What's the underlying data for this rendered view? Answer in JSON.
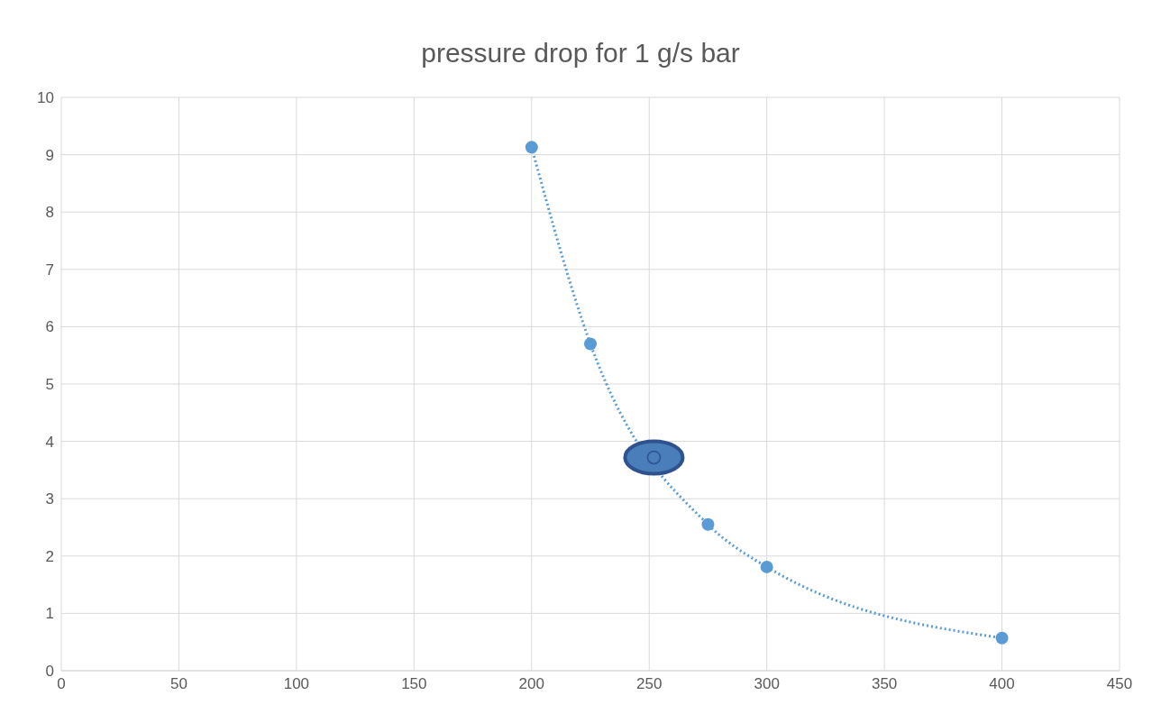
{
  "chart_data": {
    "type": "line",
    "title": "pressure drop for 1 g/s bar",
    "series": [
      {
        "color": "#5b9bd5",
        "marker": "circle",
        "line_style": "dotted",
        "x": [
          200,
          225,
          275,
          300,
          400
        ],
        "values": [
          9.13,
          5.7,
          2.55,
          1.81,
          0.57
        ]
      },
      {
        "type": "scatter",
        "color": "#4a7ebb",
        "marker": "circle",
        "x": [
          252
        ],
        "values": [
          3.72
        ]
      }
    ],
    "xlim": [
      0,
      450
    ],
    "xticks": [
      0,
      50,
      100,
      150,
      200,
      250,
      300,
      350,
      400,
      450
    ],
    "ylim": [
      0,
      10
    ],
    "yticks": [
      0,
      1,
      2,
      3,
      4,
      5,
      6,
      7,
      8,
      9,
      10
    ],
    "grid": true,
    "legend": false
  }
}
